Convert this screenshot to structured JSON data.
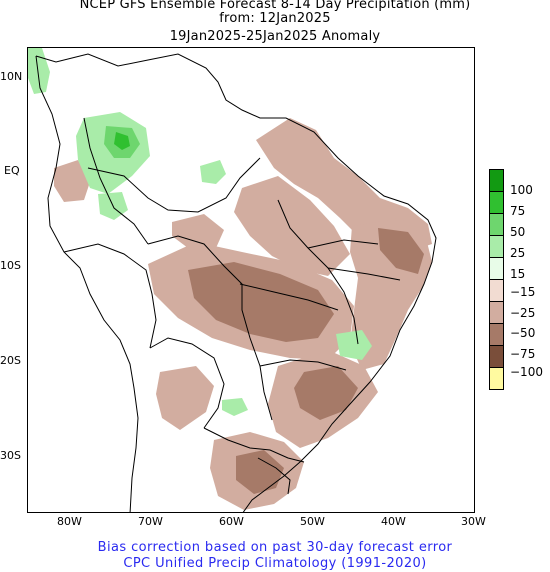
{
  "title": {
    "line1": "NCEP GFS Ensemble Forecast 8-14 Day Precipitation (mm)",
    "line2": "from: 12Jan2025",
    "line3": "19Jan2025-25Jan2025 Anomaly"
  },
  "axes": {
    "lat_labels": [
      "10N",
      "EQ",
      "10S",
      "20S",
      "30S"
    ],
    "lon_labels": [
      "80W",
      "70W",
      "60W",
      "50W",
      "40W",
      "30W"
    ]
  },
  "legend": {
    "items": [
      {
        "label": "100",
        "color": "#129a12"
      },
      {
        "label": "75",
        "color": "#30c030"
      },
      {
        "label": "50",
        "color": "#6ed66e"
      },
      {
        "label": "25",
        "color": "#a9eca9"
      },
      {
        "label": "15",
        "color": "#e8fce8"
      },
      {
        "label": "−15",
        "color": "#f2dcd2"
      },
      {
        "label": "−25",
        "color": "#d2ada0"
      },
      {
        "label": "−50",
        "color": "#a67a68"
      },
      {
        "label": "−75",
        "color": "#7a4e3a"
      },
      {
        "label": "−100",
        "color": "#fffaa0"
      }
    ]
  },
  "footer": {
    "line1": "Bias correction based on past 30-day forecast error",
    "line2": "CPC Unified Precip Climatology (1991-2020)"
  },
  "colors": {
    "text_blue": "#2a2af0",
    "dry_light": "#d2ada0",
    "dry_mid": "#a67a68",
    "wet_light": "#a9eca9",
    "wet_mid": "#6ed66e",
    "wet_strong": "#30c030"
  }
}
